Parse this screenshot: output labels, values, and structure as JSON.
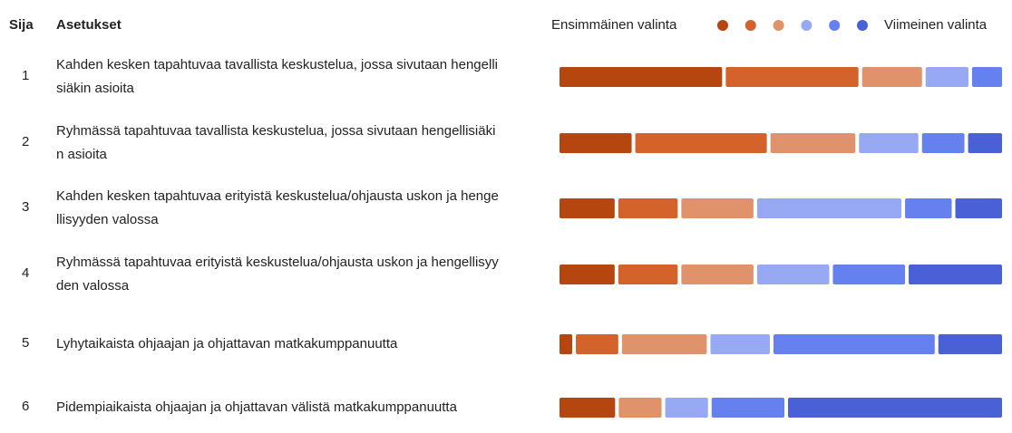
{
  "chart_data": {
    "type": "bar",
    "orientation": "horizontal",
    "stacked": true,
    "rank_header": "Sija",
    "label_header": "Asetukset",
    "legend": {
      "start_label": "Ensimmäinen valinta",
      "end_label": "Viimeinen valinta"
    },
    "ranks": [
      1,
      2,
      3,
      4,
      5,
      6
    ],
    "categories": [
      " Kahden kesken tapahtuvaa tavallista keskustelua, jossa sivutaan hengellisiäkin asioita",
      "Ryhmässä tapahtuvaa tavallista keskustelua, jossa sivutaan hengellisiäkin asioita",
      "Kahden kesken tapahtuvaa erityistä keskustelua/ohjausta uskon ja hengellisyyden valossa",
      "Ryhmässä tapahtuvaa erityistä keskustelua/ohjausta uskon ja hengellisyyden valossa",
      "Lyhytaikaista ohjaajan ja ohjattavan matkakumppanuutta",
      "Pidempiaikaista ohjaajan ja ohjattavan välistä matkakumppanuutta"
    ],
    "xlim": [
      0,
      100
    ],
    "series": [
      {
        "color": "#b5460f",
        "values": [
          38,
          17,
          13,
          13,
          3,
          13
        ]
      },
      {
        "color": "#d4632b",
        "values": [
          31,
          31,
          14,
          14,
          10,
          0
        ]
      },
      {
        "color": "#e0936a",
        "values": [
          14,
          20,
          17,
          17,
          20,
          10
        ]
      },
      {
        "color": "#98a9f4",
        "values": [
          10,
          14,
          34,
          17,
          14,
          10
        ]
      },
      {
        "color": "#6580ef",
        "values": [
          7,
          10,
          11,
          17,
          38,
          17
        ]
      },
      {
        "color": "#4a60d7",
        "values": [
          0,
          8,
          11,
          22,
          15,
          50
        ]
      }
    ]
  }
}
